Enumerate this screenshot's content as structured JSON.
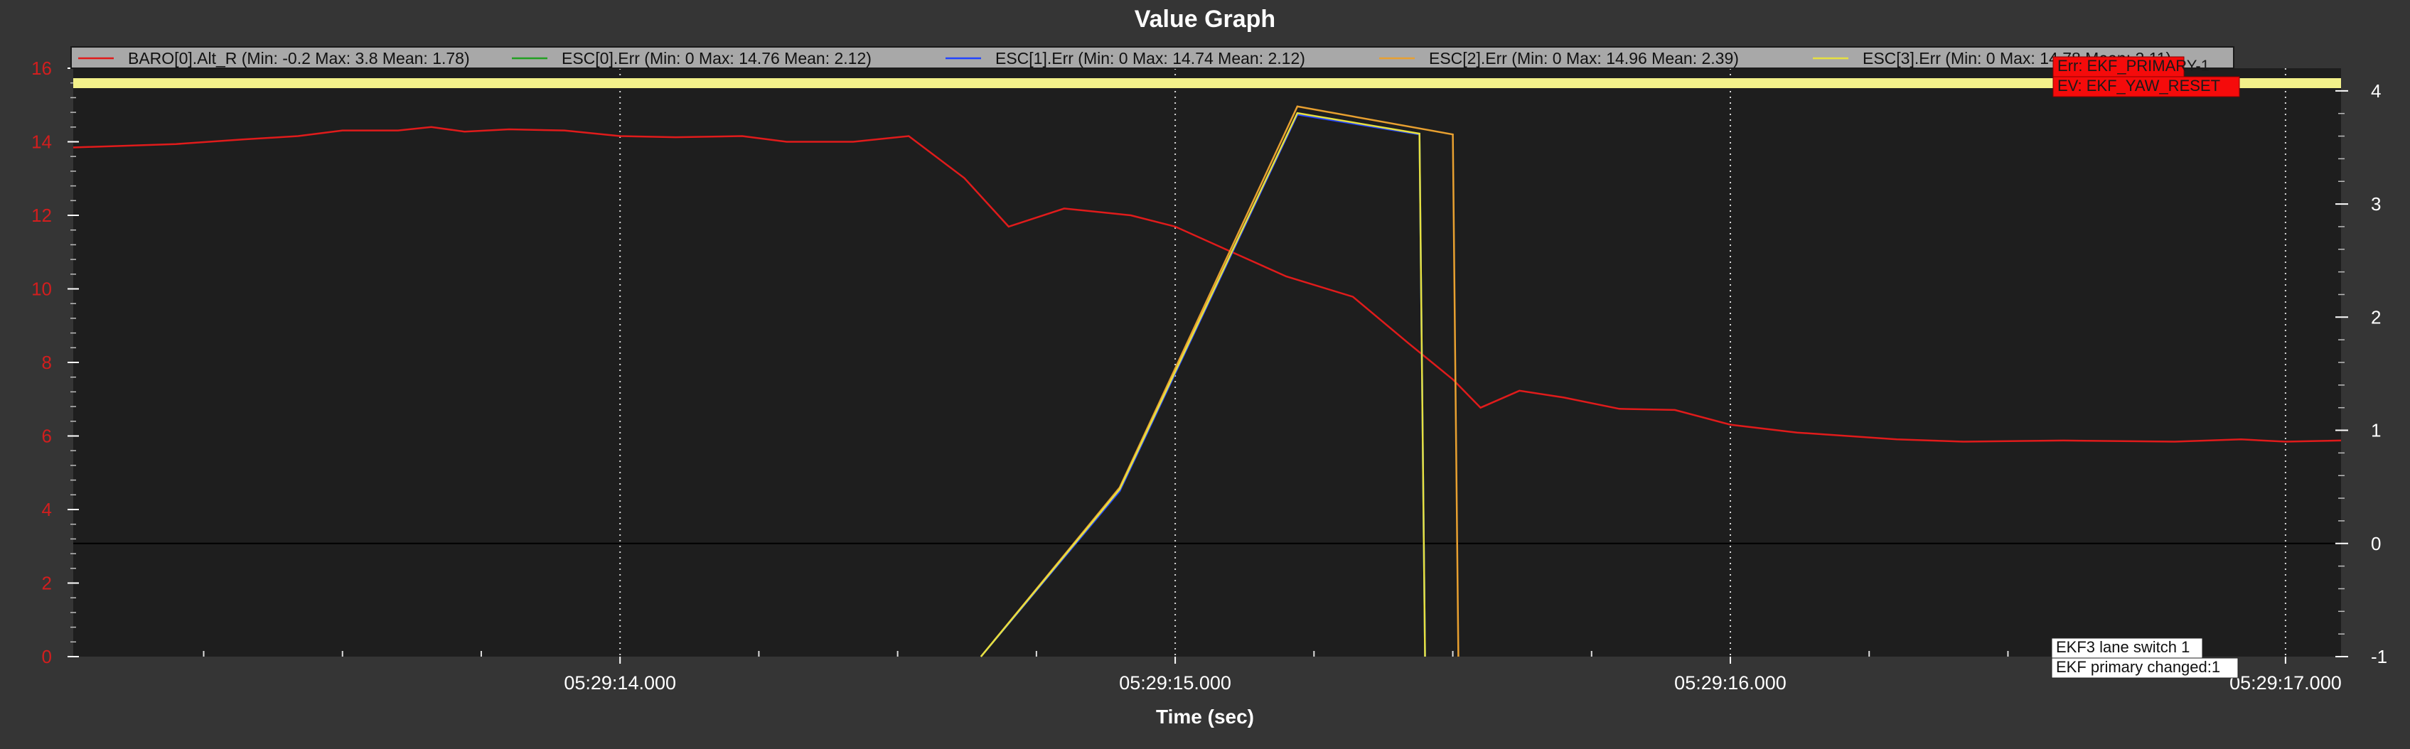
{
  "chart_data": {
    "type": "line",
    "title": "Value Graph",
    "xlabel": "Time (sec)",
    "ylabel": "",
    "x_ticks": [
      {
        "value": 14.0,
        "label": "05:29:14.000"
      },
      {
        "value": 15.0,
        "label": "05:29:15.000"
      },
      {
        "value": 16.0,
        "label": "05:29:16.000"
      },
      {
        "value": 17.0,
        "label": "05:29:17.000"
      }
    ],
    "xlim": [
      13.015,
      17.1
    ],
    "ylim_left": [
      0,
      16
    ],
    "ylim_right": [
      -1,
      4.2
    ],
    "yticks_left": [
      0,
      2,
      4,
      6,
      8,
      10,
      12,
      14,
      16
    ],
    "yticks_right": [
      -1,
      0,
      1,
      2,
      3,
      4
    ],
    "grid": true,
    "legend_position": "top",
    "series": [
      {
        "name": "BARO[0].Alt_R",
        "legend": "BARO[0].Alt_R (Min: -0.2 Max: 3.8 Mean: 1.78)",
        "color": "#e01b1b",
        "axis": "right",
        "points": [
          [
            13.015,
            3.5
          ],
          [
            13.2,
            3.53
          ],
          [
            13.32,
            3.57
          ],
          [
            13.42,
            3.6
          ],
          [
            13.5,
            3.65
          ],
          [
            13.6,
            3.65
          ],
          [
            13.66,
            3.68
          ],
          [
            13.72,
            3.64
          ],
          [
            13.8,
            3.66
          ],
          [
            13.9,
            3.65
          ],
          [
            14.0,
            3.6
          ],
          [
            14.1,
            3.59
          ],
          [
            14.22,
            3.6
          ],
          [
            14.3,
            3.55
          ],
          [
            14.42,
            3.55
          ],
          [
            14.52,
            3.6
          ],
          [
            14.62,
            3.23
          ],
          [
            14.7,
            2.8
          ],
          [
            14.8,
            2.96
          ],
          [
            14.92,
            2.9
          ],
          [
            15.0,
            2.8
          ],
          [
            15.1,
            2.58
          ],
          [
            15.2,
            2.36
          ],
          [
            15.32,
            2.18
          ],
          [
            15.42,
            1.77
          ],
          [
            15.5,
            1.45
          ],
          [
            15.55,
            1.2
          ],
          [
            15.62,
            1.35
          ],
          [
            15.7,
            1.29
          ],
          [
            15.8,
            1.19
          ],
          [
            15.9,
            1.18
          ],
          [
            16.0,
            1.05
          ],
          [
            16.12,
            0.98
          ],
          [
            16.3,
            0.92
          ],
          [
            16.42,
            0.9
          ],
          [
            16.6,
            0.91
          ],
          [
            16.8,
            0.9
          ],
          [
            16.92,
            0.92
          ],
          [
            17.0,
            0.9
          ],
          [
            17.1,
            0.91
          ]
        ]
      },
      {
        "name": "ESC[0].Err",
        "legend": "ESC[0].Err (Min: 0 Max: 14.76 Mean: 2.12)",
        "color": "#22a022",
        "axis": "left",
        "points": [
          [
            14.65,
            0
          ],
          [
            14.9,
            4.5
          ],
          [
            15.22,
            14.76
          ],
          [
            15.44,
            14.2
          ],
          [
            15.45,
            0
          ]
        ]
      },
      {
        "name": "ESC[1].Err",
        "legend": "ESC[1].Err (Min: 0 Max: 14.74 Mean: 2.12)",
        "color": "#2244ff",
        "axis": "left",
        "points": [
          [
            14.65,
            0
          ],
          [
            14.9,
            4.5
          ],
          [
            15.22,
            14.74
          ],
          [
            15.44,
            14.2
          ],
          [
            15.45,
            0
          ]
        ]
      },
      {
        "name": "ESC[2].Err",
        "legend": "ESC[2].Err (Min: 0 Max: 14.96 Mean: 2.39)",
        "color": "#e8a030",
        "axis": "left",
        "points": [
          [
            14.65,
            0
          ],
          [
            14.9,
            4.6
          ],
          [
            15.22,
            14.96
          ],
          [
            15.5,
            14.2
          ],
          [
            15.51,
            0
          ]
        ]
      },
      {
        "name": "ESC[3].Err",
        "legend": "ESC[3].Err (Min: 0 Max: 14.78 Mean: 2.11)",
        "color": "#e6e040",
        "axis": "left",
        "points": [
          [
            14.65,
            0
          ],
          [
            14.9,
            4.55
          ],
          [
            15.22,
            14.78
          ],
          [
            15.44,
            14.22
          ],
          [
            15.45,
            0
          ]
        ]
      }
    ],
    "events": [
      {
        "label": "Err: EKF_PRIMARY-1",
        "style": "red"
      },
      {
        "label": "EV: EKF_YAW_RESET",
        "style": "red"
      },
      {
        "label": "EKF3 lane switch 1",
        "style": "white"
      },
      {
        "label": "EKF primary changed:1",
        "style": "white"
      }
    ]
  }
}
